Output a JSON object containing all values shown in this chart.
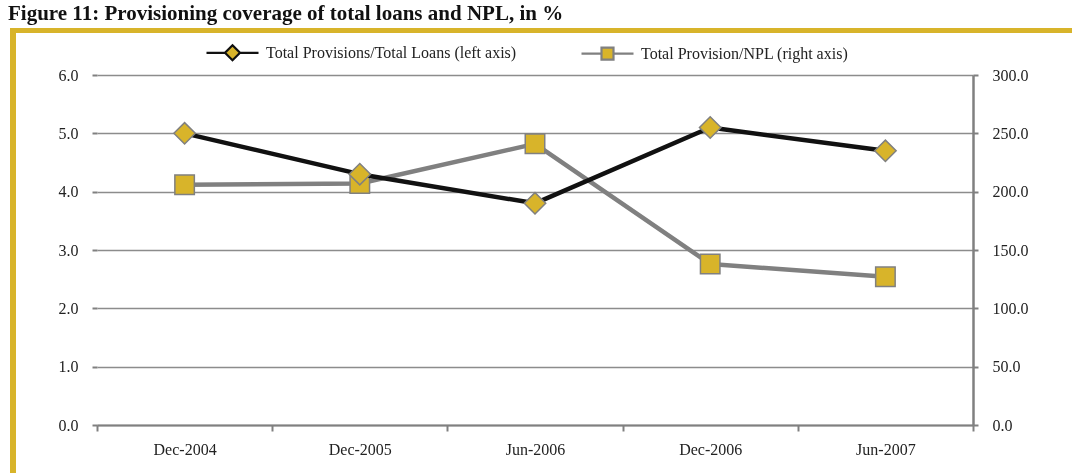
{
  "chart_data": {
    "type": "line",
    "title": "Figure 11: Provisioning coverage of total loans and NPL, in %",
    "categories": [
      "Dec-2004",
      "Dec-2005",
      "Jun-2006",
      "Dec-2006",
      "Jun-2007"
    ],
    "series": [
      {
        "name": "Total Provisions/Total Loans (left axis)",
        "color": "#111111",
        "marker": "diamond",
        "values": [
          5.0,
          4.3,
          3.8,
          5.1,
          4.7
        ]
      },
      {
        "name": "Total Provision/NPL (right axis)",
        "color": "#808080",
        "marker": "square",
        "axis": "y2",
        "values": [
          206,
          207,
          241,
          138,
          127
        ]
      }
    ],
    "ylim": [
      0,
      6
    ],
    "yticks": [
      {
        "value": 0,
        "label": "0.0"
      },
      {
        "value": 1,
        "label": "1.0"
      },
      {
        "value": 2,
        "label": "2.0"
      },
      {
        "value": 3,
        "label": "3.0"
      },
      {
        "value": 4,
        "label": "4.0"
      },
      {
        "value": 5,
        "label": "5.0"
      },
      {
        "value": 6,
        "label": "6.0"
      }
    ],
    "y2lim": [
      0,
      300
    ],
    "y2ticks": [
      {
        "value": 0,
        "label": "0.0"
      },
      {
        "value": 50,
        "label": "50.0"
      },
      {
        "value": 100,
        "label": "100.0"
      },
      {
        "value": 150,
        "label": "150.0"
      },
      {
        "value": 200,
        "label": "200.0"
      },
      {
        "value": 250,
        "label": "250.0"
      },
      {
        "value": 300,
        "label": "300.0"
      }
    ],
    "grid": "y",
    "legend": "top"
  }
}
